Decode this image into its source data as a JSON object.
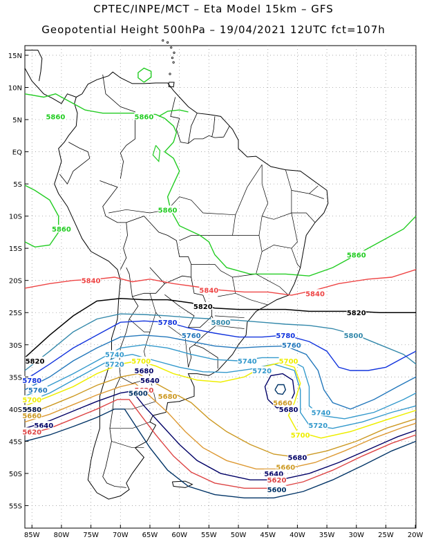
{
  "header": {
    "line1": "CPTEC/INPE/MCT –  Eta Model 15km – GFS",
    "line2": "Geopotential Height 500hPa – 19/04/2021 12UTC fct=107h"
  },
  "axes": {
    "lat_labels": [
      "15N",
      "10N",
      "5N",
      "EQ",
      "5S",
      "10S",
      "15S",
      "20S",
      "25S",
      "30S",
      "35S",
      "40S",
      "45S",
      "50S",
      "55S"
    ],
    "lon_labels": [
      "85W",
      "80W",
      "75W",
      "70W",
      "65W",
      "60W",
      "55W",
      "50W",
      "45W",
      "40W",
      "35W",
      "30W",
      "25W",
      "20W"
    ]
  },
  "colors": {
    "c5860": "#22cc22",
    "c5840": "#ee4444",
    "c5820": "#000000",
    "c5800": "#3388aa",
    "c5780": "#1133dd",
    "c5760": "#2277bb",
    "c5740": "#3399cc",
    "c5720": "#3399cc",
    "c5700": "#eeee00",
    "c5680": "#cc9922",
    "c5660": "#dd9933",
    "c5640": "#000066",
    "c5620": "#dd4444",
    "c5600": "#003366",
    "c5580": "#001144",
    "coast": "#000000"
  },
  "contour_labels": [
    {
      "text": "5860",
      "color": "#22cc22",
      "lon": -81,
      "lat": 5.5
    },
    {
      "text": "5860",
      "color": "#22cc22",
      "lon": -66,
      "lat": 5.5
    },
    {
      "text": "5860",
      "color": "#22cc22",
      "lon": -62,
      "lat": -9
    },
    {
      "text": "5860",
      "color": "#22cc22",
      "lon": -80,
      "lat": -12
    },
    {
      "text": "5860",
      "color": "#22cc22",
      "lon": -30,
      "lat": -16
    },
    {
      "text": "5840",
      "color": "#ee4444",
      "lon": -75,
      "lat": -20
    },
    {
      "text": "5840",
      "color": "#ee4444",
      "lon": -55,
      "lat": -21.5
    },
    {
      "text": "5840",
      "color": "#ee4444",
      "lon": -37,
      "lat": -22
    },
    {
      "text": "5820",
      "color": "#000000",
      "lon": -56,
      "lat": -24
    },
    {
      "text": "5820",
      "color": "#000000",
      "lon": -30,
      "lat": -25
    },
    {
      "text": "5820",
      "color": "#000000",
      "lon": -84.5,
      "lat": -32.5
    },
    {
      "text": "5800",
      "color": "#3388aa",
      "lon": -53,
      "lat": -26.5
    },
    {
      "text": "5800",
      "color": "#3388aa",
      "lon": -30.5,
      "lat": -28.5
    },
    {
      "text": "5780",
      "color": "#1133dd",
      "lon": -62,
      "lat": -26.5
    },
    {
      "text": "5780",
      "color": "#1133dd",
      "lon": -42,
      "lat": -28.5
    },
    {
      "text": "5780",
      "color": "#1133dd",
      "lon": -85,
      "lat": -35.5
    },
    {
      "text": "5760",
      "color": "#2277bb",
      "lon": -58,
      "lat": -28.5
    },
    {
      "text": "5760",
      "color": "#2277bb",
      "lon": -41,
      "lat": -30
    },
    {
      "text": "5760",
      "color": "#2277bb",
      "lon": -84,
      "lat": -37
    },
    {
      "text": "5740",
      "color": "#3399cc",
      "lon": -71,
      "lat": -31.5
    },
    {
      "text": "5740",
      "color": "#3399cc",
      "lon": -48.5,
      "lat": -32.5
    },
    {
      "text": "5740",
      "color": "#3399cc",
      "lon": -36,
      "lat": -40.5
    },
    {
      "text": "5720",
      "color": "#3399cc",
      "lon": -71,
      "lat": -33
    },
    {
      "text": "5720",
      "color": "#3399cc",
      "lon": -46,
      "lat": -34
    },
    {
      "text": "5720",
      "color": "#3399cc",
      "lon": -36.5,
      "lat": -42.5
    },
    {
      "text": "5700",
      "color": "#eeee00",
      "lon": -66.5,
      "lat": -32.5
    },
    {
      "text": "5700",
      "color": "#eeee00",
      "lon": -41.5,
      "lat": -32.5
    },
    {
      "text": "5700",
      "color": "#eeee00",
      "lon": -39.5,
      "lat": -44
    },
    {
      "text": "5700",
      "color": "#eeee00",
      "lon": -85,
      "lat": -38.5
    },
    {
      "text": "5680",
      "color": "#000066",
      "lon": -66,
      "lat": -34
    },
    {
      "text": "5680",
      "color": "#000066",
      "lon": -41.5,
      "lat": -40
    },
    {
      "text": "5680",
      "color": "#000066",
      "lon": -40,
      "lat": -47.5
    },
    {
      "text": "5680",
      "color": "#cc9922",
      "lon": -62,
      "lat": -38
    },
    {
      "text": "5660",
      "color": "#cc9922",
      "lon": -42.5,
      "lat": -39
    },
    {
      "text": "5660",
      "color": "#cc9922",
      "lon": -42,
      "lat": -49
    },
    {
      "text": "5660",
      "color": "#cc9922",
      "lon": -85,
      "lat": -41
    },
    {
      "text": "5640",
      "color": "#000066",
      "lon": -65,
      "lat": -35.5
    },
    {
      "text": "5640",
      "color": "#000066",
      "lon": -44,
      "lat": -50
    },
    {
      "text": "5640",
      "color": "#000066",
      "lon": -83,
      "lat": -42.5
    },
    {
      "text": "5620",
      "color": "#dd4444",
      "lon": -66,
      "lat": -37
    },
    {
      "text": "5620",
      "color": "#dd4444",
      "lon": -43.5,
      "lat": -51
    },
    {
      "text": "5620",
      "color": "#dd4444",
      "lon": -85,
      "lat": -43.5
    },
    {
      "text": "5600",
      "color": "#003366",
      "lon": -67,
      "lat": -37.5
    },
    {
      "text": "5600",
      "color": "#003366",
      "lon": -43.5,
      "lat": -52.5
    },
    {
      "text": "5580",
      "color": "#001144",
      "lon": -85,
      "lat": -40
    }
  ]
}
